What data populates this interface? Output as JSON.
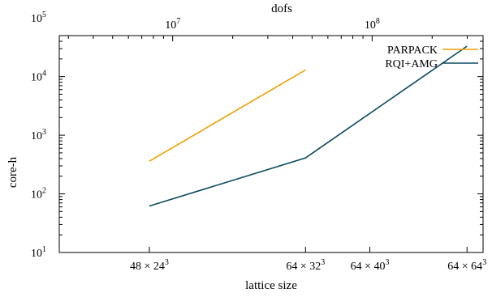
{
  "chart_data": {
    "type": "line",
    "xlabel": "lattice size",
    "ylabel": "core-h",
    "x2label": "dofs",
    "x_scale": "log",
    "y_scale": "log",
    "x2_scale": "log",
    "xlim": [
      8.2,
      16.8
    ],
    "ylim": [
      10,
      50000
    ],
    "x2lim": [
      2700000,
      360000000
    ],
    "x_ticks": [
      {
        "value": 9.55,
        "base": "48 × 24",
        "exp": "3"
      },
      {
        "value": 12.44,
        "base": "64 × 32",
        "exp": "3"
      },
      {
        "value": 13.87,
        "base": "64 × 40",
        "exp": "3"
      },
      {
        "value": 16.35,
        "base": "64 × 64",
        "exp": "3"
      }
    ],
    "y_ticks": [
      {
        "value": 10,
        "base": "10",
        "exp": "1"
      },
      {
        "value": 100,
        "base": "10",
        "exp": "2"
      },
      {
        "value": 1000,
        "base": "10",
        "exp": "3"
      },
      {
        "value": 10000,
        "base": "10",
        "exp": "4"
      },
      {
        "value": 100000,
        "base": "10",
        "exp": "5"
      }
    ],
    "x2_ticks": [
      {
        "value": 10000000,
        "base": "10",
        "exp": "7"
      },
      {
        "value": 100000000,
        "base": "10",
        "exp": "8"
      }
    ],
    "legend_position": "top-right",
    "grid": false,
    "series": [
      {
        "name": "PARPACK",
        "color": "#f0a000",
        "x": [
          9.55,
          12.44
        ],
        "y": [
          360,
          13000
        ]
      },
      {
        "name": "RQI+AMG",
        "color": "#0b4a60",
        "x": [
          9.55,
          12.44,
          16.35
        ],
        "y": [
          62,
          410,
          33000
        ]
      }
    ]
  }
}
